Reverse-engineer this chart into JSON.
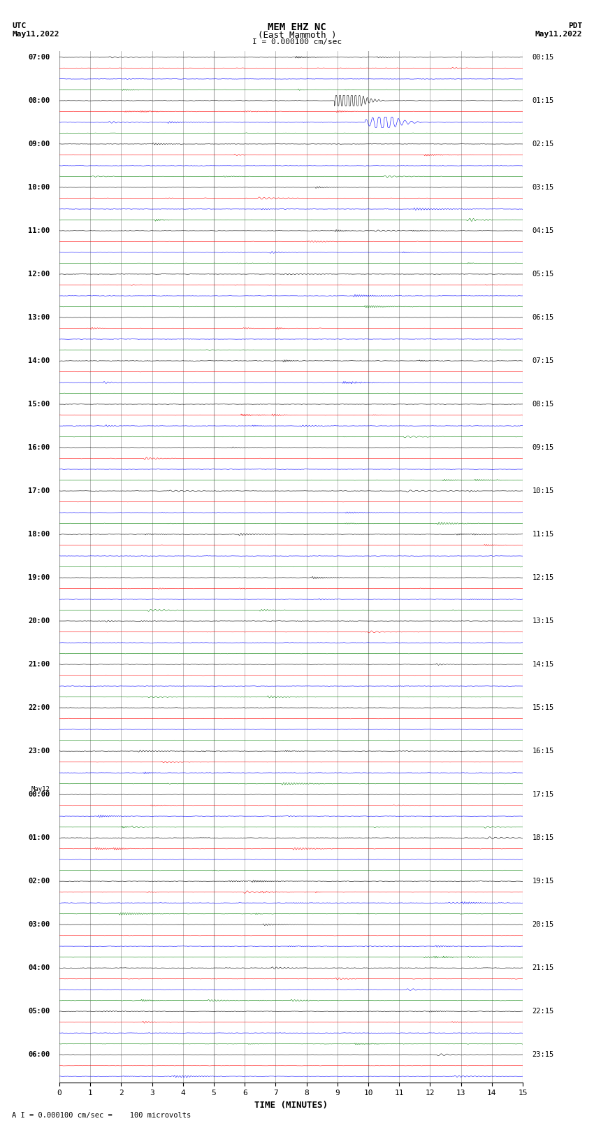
{
  "title_line1": "MEM EHZ NC",
  "title_line2": "(East Mammoth )",
  "title_scale": "I = 0.000100 cm/sec",
  "left_label_top": "UTC",
  "left_label_date": "May11,2022",
  "right_label_top": "PDT",
  "right_label_date": "May11,2022",
  "xlabel": "TIME (MINUTES)",
  "bottom_note": "A I = 0.000100 cm/sec =    100 microvolts",
  "xlim": [
    0,
    15
  ],
  "xticks": [
    0,
    1,
    2,
    3,
    4,
    5,
    6,
    7,
    8,
    9,
    10,
    11,
    12,
    13,
    14,
    15
  ],
  "trace_colors": [
    "black",
    "red",
    "blue",
    "green"
  ],
  "n_rows": 95,
  "fig_width": 8.5,
  "fig_height": 16.13,
  "left_times_utc": [
    "07:00",
    "",
    "",
    "",
    "08:00",
    "",
    "",
    "",
    "09:00",
    "",
    "",
    "",
    "10:00",
    "",
    "",
    "",
    "11:00",
    "",
    "",
    "",
    "12:00",
    "",
    "",
    "",
    "13:00",
    "",
    "",
    "",
    "14:00",
    "",
    "",
    "",
    "15:00",
    "",
    "",
    "",
    "16:00",
    "",
    "",
    "",
    "17:00",
    "",
    "",
    "",
    "18:00",
    "",
    "",
    "",
    "19:00",
    "",
    "",
    "",
    "20:00",
    "",
    "",
    "",
    "21:00",
    "",
    "",
    "",
    "22:00",
    "",
    "",
    "",
    "23:00",
    "",
    "",
    "",
    "May12\n00:00",
    "",
    "",
    "",
    "01:00",
    "",
    "",
    "",
    "02:00",
    "",
    "",
    "",
    "03:00",
    "",
    "",
    "",
    "04:00",
    "",
    "",
    "",
    "05:00",
    "",
    "",
    "",
    "06:00",
    "",
    ""
  ],
  "right_times_pdt": [
    "00:15",
    "",
    "",
    "",
    "01:15",
    "",
    "",
    "",
    "02:15",
    "",
    "",
    "",
    "03:15",
    "",
    "",
    "",
    "04:15",
    "",
    "",
    "",
    "05:15",
    "",
    "",
    "",
    "06:15",
    "",
    "",
    "",
    "07:15",
    "",
    "",
    "",
    "08:15",
    "",
    "",
    "",
    "09:15",
    "",
    "",
    "",
    "10:15",
    "",
    "",
    "",
    "11:15",
    "",
    "",
    "",
    "12:15",
    "",
    "",
    "",
    "13:15",
    "",
    "",
    "",
    "14:15",
    "",
    "",
    "",
    "15:15",
    "",
    "",
    "",
    "16:15",
    "",
    "",
    "",
    "17:15",
    "",
    "",
    "",
    "18:15",
    "",
    "",
    "",
    "19:15",
    "",
    "",
    "",
    "20:15",
    "",
    "",
    "",
    "21:15",
    "",
    "",
    "",
    "22:15",
    "",
    "",
    "",
    "23:15",
    "",
    ""
  ],
  "background_color": "white",
  "grid_color": "#888888",
  "amplitude_scale": 0.32,
  "spike_row_black": 4,
  "spike_row_blue": 6,
  "spike_col_black": 9.3,
  "spike_col_blue": 10.5,
  "spike_amplitude_black": 8.0,
  "spike_amplitude_blue": 3.5
}
